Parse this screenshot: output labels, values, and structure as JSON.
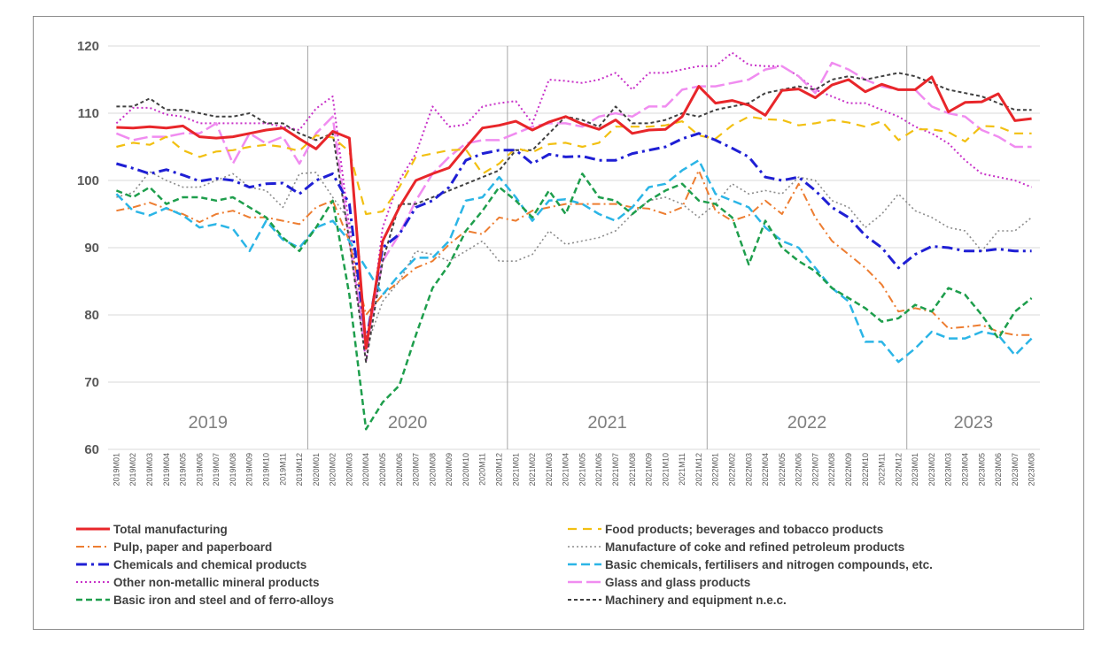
{
  "chart_data": {
    "type": "line",
    "title": "",
    "xlabel": "",
    "ylabel": "",
    "ylim": [
      60,
      120
    ],
    "yticks": [
      60,
      70,
      80,
      90,
      100,
      110,
      120
    ],
    "grid": "horizontal gridlines; vertical separators between years",
    "legend_position": "bottom",
    "years": [
      "2019",
      "2020",
      "2021",
      "2022",
      "2023"
    ],
    "x": [
      "2019M01",
      "2019M02",
      "2019M03",
      "2019M04",
      "2019M05",
      "2019M06",
      "2019M07",
      "2019M08",
      "2019M09",
      "2019M10",
      "2019M11",
      "2019M12",
      "2020M01",
      "2020M02",
      "2020M03",
      "2020M04",
      "2020M05",
      "2020M06",
      "2020M07",
      "2020M08",
      "2020M09",
      "2020M10",
      "2020M11",
      "2020M12",
      "2021M01",
      "2021M02",
      "2021M03",
      "2021M04",
      "2021M05",
      "2021M06",
      "2021M07",
      "2021M08",
      "2021M09",
      "2021M10",
      "2021M11",
      "2021M12",
      "2022M01",
      "2022M02",
      "2022M03",
      "2022M04",
      "2022M05",
      "2022M06",
      "2022M07",
      "2022M08",
      "2022M09",
      "2022M10",
      "2022M11",
      "2022M12",
      "2023M01",
      "2023M02",
      "2023M03",
      "2023M04",
      "2023M05",
      "2023M06",
      "2023M07",
      "2023M08"
    ],
    "series": [
      {
        "name": "Total manufacturing",
        "color": "#e8262a",
        "dash": "",
        "width": 3,
        "values": [
          107.9,
          107.8,
          108.0,
          107.8,
          108.1,
          106.5,
          106.3,
          106.5,
          107.0,
          107.5,
          107.8,
          106.2,
          104.7,
          107.3,
          106.3,
          75.0,
          91.0,
          96.0,
          100.0,
          101.0,
          101.9,
          104.9,
          107.8,
          108.2,
          108.8,
          107.5,
          108.7,
          109.5,
          108.4,
          107.6,
          109.0,
          107.0,
          107.5,
          107.6,
          109.5,
          114.0,
          111.5,
          111.9,
          111.2,
          109.7,
          113.4,
          113.6,
          112.3,
          114.2,
          115.0,
          113.2,
          114.3,
          113.5,
          113.5,
          115.4,
          110.2,
          111.6,
          111.7,
          112.9,
          108.9,
          109.2
        ]
      },
      {
        "name": "Food products; beverages and tobacco products",
        "color": "#f2c012",
        "dash": "10,7",
        "width": 2.2,
        "values": [
          105.0,
          105.6,
          105.3,
          106.5,
          104.5,
          103.5,
          104.3,
          104.5,
          105.0,
          105.3,
          105.0,
          104.4,
          106.7,
          106.4,
          104.3,
          95.0,
          95.4,
          99.0,
          103.5,
          104.0,
          104.5,
          104.6,
          101.0,
          102.5,
          104.8,
          104.2,
          105.4,
          105.6,
          105.0,
          105.6,
          108.0,
          108.0,
          108.0,
          108.2,
          108.8,
          106.7,
          106.2,
          108.2,
          109.5,
          109.1,
          109.0,
          108.2,
          108.5,
          109.0,
          108.6,
          108.0,
          108.8,
          106.0,
          107.6,
          107.6,
          107.2,
          105.8,
          108.1,
          108.0,
          107.0,
          107.0
        ]
      },
      {
        "name": "Pulp, paper and paperboard",
        "color": "#ed7d31",
        "dash": "9,4,2,4",
        "width": 2,
        "values": [
          95.5,
          96.0,
          96.7,
          95.8,
          95.0,
          93.8,
          95.0,
          95.5,
          94.5,
          94.5,
          94.0,
          93.5,
          96.0,
          97.0,
          91.0,
          80.0,
          83.0,
          85.0,
          87.0,
          88.0,
          90.5,
          92.5,
          92.0,
          94.5,
          94.0,
          95.5,
          96.0,
          96.5,
          96.5,
          96.5,
          96.5,
          96.0,
          95.8,
          95.0,
          96.0,
          101.5,
          95.5,
          94.0,
          94.8,
          97.0,
          95.0,
          99.5,
          94.5,
          91.0,
          89.0,
          87.0,
          84.5,
          80.5,
          81.0,
          80.5,
          78.0,
          78.2,
          78.5,
          77.5,
          77.0,
          77.0
        ]
      },
      {
        "name": "Manufacture of coke and refined petroleum products",
        "color": "#8c8c8c",
        "dash": "2,3",
        "width": 1.6,
        "values": [
          97.5,
          98.2,
          101.3,
          100.0,
          99.0,
          99.0,
          100.0,
          101.0,
          99.0,
          98.5,
          96.0,
          101.0,
          101.2,
          97.5,
          94.0,
          75.0,
          82.0,
          85.0,
          89.5,
          89.0,
          88.0,
          89.5,
          91.0,
          88.0,
          88.0,
          89.0,
          92.5,
          90.5,
          91.0,
          91.5,
          92.5,
          95.0,
          97.0,
          97.5,
          96.5,
          94.5,
          96.5,
          99.5,
          98.0,
          98.5,
          98.0,
          100.5,
          100.0,
          97.0,
          96.0,
          93.0,
          95.0,
          98.0,
          95.5,
          94.5,
          93.0,
          92.5,
          89.5,
          92.5,
          92.5,
          94.5
        ]
      },
      {
        "name": "Chemicals and chemical products",
        "color": "#1f1fd4",
        "dash": "12,5,3,5",
        "width": 3,
        "values": [
          102.5,
          101.8,
          101.0,
          101.6,
          100.8,
          99.9,
          100.3,
          100.0,
          99.0,
          99.5,
          99.6,
          98.0,
          100.0,
          101.0,
          96.5,
          76.0,
          90.0,
          92.0,
          96.0,
          97.0,
          99.0,
          103.0,
          104.0,
          104.5,
          104.5,
          102.5,
          103.9,
          103.5,
          103.6,
          103.0,
          103.0,
          104.0,
          104.5,
          105.0,
          106.2,
          107.0,
          106.0,
          104.8,
          103.5,
          100.5,
          100.0,
          100.5,
          98.5,
          96.0,
          94.5,
          91.8,
          90.0,
          87.0,
          89.0,
          90.2,
          90.0,
          89.5,
          89.5,
          89.8,
          89.5,
          89.5
        ]
      },
      {
        "name": "Basic chemicals, fertilisers and nitrogen compounds, etc.",
        "color": "#2bb5e6",
        "dash": "10,5",
        "width": 2.5,
        "values": [
          98.0,
          95.5,
          94.8,
          95.9,
          94.8,
          93.0,
          93.5,
          92.8,
          89.5,
          94.0,
          91.2,
          90.0,
          93.0,
          94.0,
          91.0,
          87.0,
          83.0,
          86.0,
          88.5,
          88.5,
          91.0,
          97.0,
          97.5,
          100.5,
          97.5,
          94.0,
          97.0,
          97.2,
          96.5,
          95.0,
          94.0,
          96.0,
          99.0,
          99.5,
          101.5,
          103.0,
          98.0,
          97.0,
          96.0,
          93.0,
          91.0,
          90.0,
          87.0,
          84.0,
          82.0,
          76.0,
          76.0,
          73.0,
          75.0,
          77.5,
          76.5,
          76.5,
          77.5,
          77.0,
          74.0,
          76.5
        ]
      },
      {
        "name": "Other non-metallic mineral products",
        "color": "#c832c8",
        "dash": "2,3",
        "width": 2,
        "values": [
          108.5,
          110.8,
          110.8,
          109.8,
          109.5,
          108.5,
          108.5,
          108.5,
          108.5,
          108.5,
          108.0,
          107.5,
          110.7,
          112.5,
          93.0,
          73.0,
          93.0,
          100.0,
          104.0,
          111.0,
          108.0,
          108.3,
          111.0,
          111.5,
          111.8,
          108.5,
          115.0,
          114.8,
          114.5,
          115.0,
          116.0,
          113.5,
          116.0,
          116.0,
          116.5,
          117.0,
          117.0,
          119.0,
          117.2,
          117.0,
          117.0,
          115.5,
          113.5,
          112.5,
          111.5,
          111.5,
          110.5,
          109.5,
          108.0,
          107.0,
          105.5,
          103.0,
          101.0,
          100.5,
          100.0,
          99.0
        ]
      },
      {
        "name": "Glass and glass products",
        "color": "#f08cf0",
        "dash": "16,5",
        "width": 2.5,
        "values": [
          107.0,
          106.0,
          106.5,
          106.5,
          107.0,
          107.0,
          108.5,
          102.5,
          107.0,
          105.5,
          106.5,
          102.5,
          107.0,
          109.5,
          91.0,
          75.0,
          88.0,
          92.0,
          97.0,
          101.0,
          103.5,
          105.5,
          106.0,
          106.0,
          107.0,
          108.0,
          108.5,
          108.5,
          108.0,
          109.5,
          110.0,
          109.5,
          111.0,
          111.0,
          113.5,
          114.0,
          114.0,
          114.5,
          115.0,
          116.5,
          117.0,
          115.5,
          113.0,
          117.5,
          116.5,
          115.0,
          114.0,
          113.5,
          113.5,
          111.0,
          110.0,
          109.5,
          107.5,
          106.5,
          105.0,
          105.0
        ]
      },
      {
        "name": "Basic iron and steel and of ferro-alloys",
        "color": "#1e9e4c",
        "dash": "7,4",
        "width": 2.5,
        "values": [
          98.5,
          97.5,
          99.0,
          96.5,
          97.5,
          97.5,
          97.0,
          97.5,
          96.0,
          94.5,
          91.5,
          89.5,
          93.0,
          97.0,
          83.0,
          63.0,
          67.0,
          69.5,
          77.0,
          84.0,
          87.5,
          92.5,
          95.5,
          99.0,
          97.0,
          94.5,
          98.5,
          95.0,
          101.0,
          97.5,
          97.0,
          95.0,
          97.0,
          98.5,
          99.5,
          97.0,
          96.5,
          94.5,
          87.5,
          94.0,
          90.0,
          88.0,
          86.5,
          84.0,
          82.5,
          81.0,
          79.0,
          79.5,
          81.5,
          80.5,
          84.0,
          83.0,
          80.0,
          76.5,
          80.5,
          82.5
        ]
      },
      {
        "name": "Machinery and equipment n.e.c.",
        "color": "#404040",
        "dash": "4,3",
        "width": 2,
        "values": [
          111.0,
          111.0,
          112.2,
          110.5,
          110.5,
          110.0,
          109.5,
          109.5,
          110.0,
          108.5,
          108.5,
          107.0,
          106.0,
          107.0,
          91.0,
          73.0,
          88.0,
          96.5,
          96.5,
          97.5,
          98.5,
          99.5,
          100.5,
          101.5,
          104.5,
          104.5,
          107.0,
          109.5,
          109.0,
          108.0,
          111.0,
          108.5,
          108.5,
          109.0,
          110.0,
          109.5,
          110.5,
          111.0,
          111.5,
          113.0,
          113.5,
          114.0,
          113.5,
          115.0,
          115.5,
          115.0,
          115.5,
          116.0,
          115.5,
          114.5,
          113.5,
          113.0,
          112.5,
          111.5,
          110.5,
          110.5
        ]
      }
    ]
  },
  "legend": {
    "items": [
      {
        "label": "Total manufacturing",
        "series": 0
      },
      {
        "label": "Food products; beverages and tobacco products",
        "series": 1
      },
      {
        "label": "Pulp, paper and paperboard",
        "series": 2
      },
      {
        "label": "Manufacture of coke and refined petroleum products",
        "series": 3
      },
      {
        "label": "Chemicals and chemical products",
        "series": 4
      },
      {
        "label": "Basic chemicals, fertilisers and nitrogen compounds, etc.",
        "series": 5
      },
      {
        "label": "Other non-metallic mineral products",
        "series": 6
      },
      {
        "label": "Glass and glass products",
        "series": 7
      },
      {
        "label": "Basic iron and steel and of ferro-alloys",
        "series": 8
      },
      {
        "label": "Machinery and equipment n.e.c.",
        "series": 9
      }
    ]
  }
}
